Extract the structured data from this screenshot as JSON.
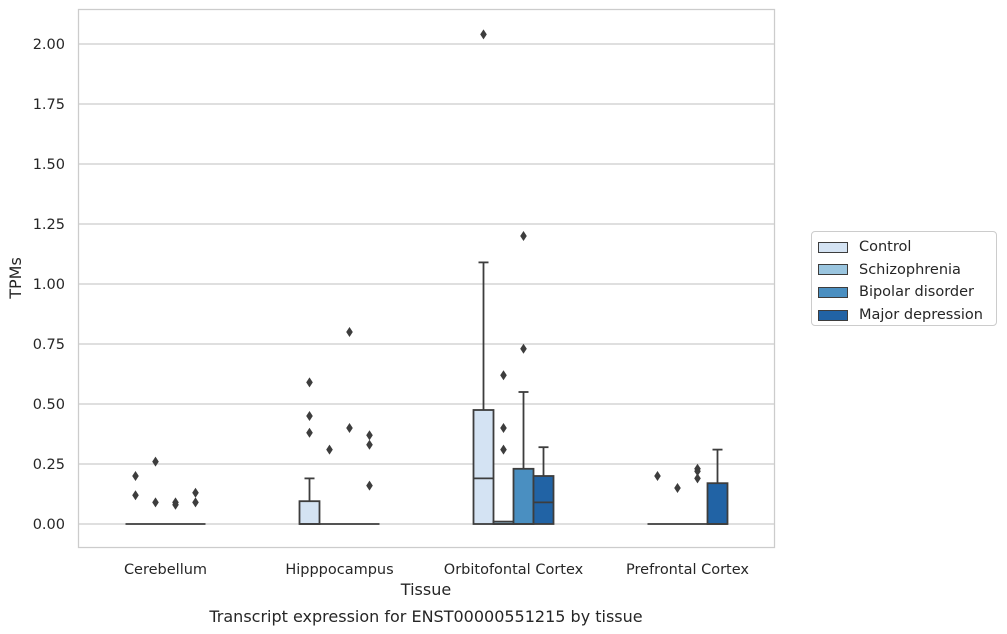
{
  "chart_data": {
    "type": "box",
    "title": "Transcript expression for ENST00000551215 by tissue",
    "xlabel": "Tissue",
    "ylabel": "TPMs",
    "ylim": [
      -0.1,
      2.15
    ],
    "yticks": [
      "0.00",
      "0.25",
      "0.50",
      "0.75",
      "1.00",
      "1.25",
      "1.50",
      "1.75",
      "2.00"
    ],
    "ytick_values": [
      0,
      0.25,
      0.5,
      0.75,
      1.0,
      1.25,
      1.5,
      1.75,
      2.0
    ],
    "categories": [
      "Cerebellum",
      "Hipppocampus",
      "Orbitofontal Cortex",
      "Prefrontal Cortex"
    ],
    "grid": "horizontal",
    "legend_position": "right",
    "series": [
      {
        "name": "Control",
        "color": "#d4e3f3",
        "boxes": [
          {
            "q1": 0,
            "median": 0,
            "q3": 0,
            "whisker_low": 0,
            "whisker_high": 0,
            "outliers": [
              0.2,
              0.12
            ]
          },
          {
            "q1": 0,
            "median": 0,
            "q3": 0.095,
            "whisker_low": 0,
            "whisker_high": 0.19,
            "outliers": [
              0.59,
              0.45,
              0.38
            ]
          },
          {
            "q1": 0,
            "median": 0.19,
            "q3": 0.475,
            "whisker_low": 0,
            "whisker_high": 1.09,
            "outliers": [
              2.04
            ]
          },
          {
            "q1": 0,
            "median": 0,
            "q3": 0,
            "whisker_low": 0,
            "whisker_high": 0,
            "outliers": [
              0.2
            ]
          }
        ]
      },
      {
        "name": "Schizophrenia",
        "color": "#9ac5df",
        "boxes": [
          {
            "q1": 0,
            "median": 0,
            "q3": 0,
            "whisker_low": 0,
            "whisker_high": 0,
            "outliers": [
              0.26,
              0.09
            ]
          },
          {
            "q1": 0,
            "median": 0,
            "q3": 0,
            "whisker_low": 0,
            "whisker_high": 0,
            "outliers": [
              0.31
            ]
          },
          {
            "q1": 0,
            "median": 0,
            "q3": 0.01,
            "whisker_low": 0,
            "whisker_high": 0.01,
            "outliers": [
              0.62,
              0.4,
              0.31
            ]
          },
          {
            "q1": 0,
            "median": 0,
            "q3": 0,
            "whisker_low": 0,
            "whisker_high": 0,
            "outliers": [
              0.15
            ]
          }
        ]
      },
      {
        "name": "Bipolar disorder",
        "color": "#4a8fc1",
        "boxes": [
          {
            "q1": 0,
            "median": 0,
            "q3": 0,
            "whisker_low": 0,
            "whisker_high": 0,
            "outliers": [
              0.09,
              0.08
            ]
          },
          {
            "q1": 0,
            "median": 0,
            "q3": 0,
            "whisker_low": 0,
            "whisker_high": 0,
            "outliers": [
              0.8,
              0.4
            ]
          },
          {
            "q1": 0,
            "median": 0,
            "q3": 0.23,
            "whisker_low": 0,
            "whisker_high": 0.55,
            "outliers": [
              1.2,
              0.73
            ]
          },
          {
            "q1": 0,
            "median": 0,
            "q3": 0,
            "whisker_low": 0,
            "whisker_high": 0,
            "outliers": [
              0.23,
              0.22,
              0.19
            ]
          }
        ]
      },
      {
        "name": "Major depression",
        "color": "#2163a5",
        "boxes": [
          {
            "q1": 0,
            "median": 0,
            "q3": 0,
            "whisker_low": 0,
            "whisker_high": 0,
            "outliers": [
              0.13,
              0.09
            ]
          },
          {
            "q1": 0,
            "median": 0,
            "q3": 0,
            "whisker_low": 0,
            "whisker_high": 0,
            "outliers": [
              0.37,
              0.33,
              0.16
            ]
          },
          {
            "q1": 0,
            "median": 0.09,
            "q3": 0.2,
            "whisker_low": 0,
            "whisker_high": 0.32,
            "outliers": []
          },
          {
            "q1": 0,
            "median": 0,
            "q3": 0.17,
            "whisker_low": 0,
            "whisker_high": 0.31,
            "outliers": []
          }
        ]
      }
    ]
  }
}
